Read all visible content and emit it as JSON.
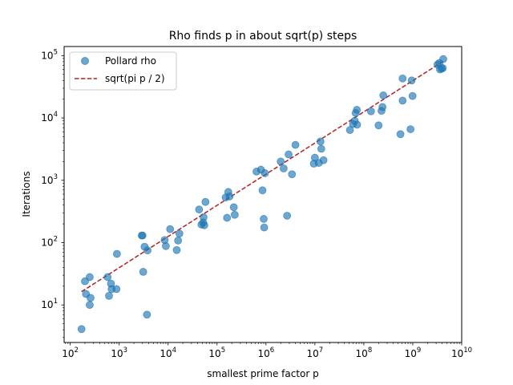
{
  "chart_data": {
    "type": "scatter",
    "title": "Rho finds p in about sqrt(p) steps",
    "xlabel": "smallest prime factor p",
    "ylabel": "Iterations",
    "xscale": "log",
    "yscale": "log",
    "xlim": [
      75,
      10000000000
    ],
    "ylim": [
      2.5,
      140000
    ],
    "xticks": [
      100,
      1000,
      10000,
      100000,
      1000000,
      10000000,
      100000000,
      1000000000,
      10000000000
    ],
    "xtick_labels": [
      {
        "base": "10",
        "exp": "2"
      },
      {
        "base": "10",
        "exp": "3"
      },
      {
        "base": "10",
        "exp": "4"
      },
      {
        "base": "10",
        "exp": "5"
      },
      {
        "base": "10",
        "exp": "6"
      },
      {
        "base": "10",
        "exp": "7"
      },
      {
        "base": "10",
        "exp": "8"
      },
      {
        "base": "10",
        "exp": "9"
      },
      {
        "base": "10",
        "exp": "10"
      }
    ],
    "yticks": [
      10,
      100,
      1000,
      10000,
      100000
    ],
    "ytick_labels": [
      {
        "base": "10",
        "exp": "1"
      },
      {
        "base": "10",
        "exp": "2"
      },
      {
        "base": "10",
        "exp": "3"
      },
      {
        "base": "10",
        "exp": "4"
      },
      {
        "base": "10",
        "exp": "5"
      }
    ],
    "grid": false,
    "legend_position": "top-left",
    "series": [
      {
        "name": "Pollard rho",
        "kind": "scatter",
        "color": "#1f77b4",
        "opacity": 0.65,
        "points": [
          [
            170,
            4.1
          ],
          [
            200,
            24
          ],
          [
            210,
            15
          ],
          [
            250,
            28
          ],
          [
            250,
            10
          ],
          [
            260,
            13
          ],
          [
            580,
            28
          ],
          [
            620,
            14
          ],
          [
            680,
            22
          ],
          [
            700,
            18
          ],
          [
            880,
            18
          ],
          [
            900,
            66
          ],
          [
            2900,
            130
          ],
          [
            3000,
            130
          ],
          [
            3100,
            34
          ],
          [
            3300,
            86
          ],
          [
            3700,
            7
          ],
          [
            3800,
            75
          ],
          [
            8500,
            110
          ],
          [
            9000,
            88
          ],
          [
            11000,
            165
          ],
          [
            15000,
            76
          ],
          [
            16000,
            108
          ],
          [
            17000,
            140
          ],
          [
            43000,
            340
          ],
          [
            48000,
            195
          ],
          [
            52000,
            210
          ],
          [
            53000,
            255
          ],
          [
            55000,
            190
          ],
          [
            58000,
            450
          ],
          [
            150000,
            530
          ],
          [
            160000,
            250
          ],
          [
            170000,
            650
          ],
          [
            180000,
            550
          ],
          [
            220000,
            370
          ],
          [
            230000,
            280
          ],
          [
            640000,
            1380
          ],
          [
            790000,
            1480
          ],
          [
            850000,
            690
          ],
          [
            900000,
            240
          ],
          [
            920000,
            175
          ],
          [
            950000,
            1300
          ],
          [
            2000000,
            2000
          ],
          [
            2300000,
            1550
          ],
          [
            2700000,
            270
          ],
          [
            2900000,
            2600
          ],
          [
            3400000,
            1250
          ],
          [
            4000000,
            3700
          ],
          [
            9500000,
            1850
          ],
          [
            10000000,
            2300
          ],
          [
            12000000,
            1900
          ],
          [
            13000000,
            4200
          ],
          [
            13500000,
            3200
          ],
          [
            15000000,
            2100
          ],
          [
            52000000,
            6400
          ],
          [
            60000000,
            8000
          ],
          [
            65000000,
            9000
          ],
          [
            68000000,
            12000
          ],
          [
            72000000,
            13500
          ],
          [
            73000000,
            7800
          ],
          [
            140000000,
            12800
          ],
          [
            200000000,
            7600
          ],
          [
            230000000,
            13000
          ],
          [
            240000000,
            15000
          ],
          [
            250000000,
            23000
          ],
          [
            560000000,
            5500
          ],
          [
            620000000,
            19000
          ],
          [
            620000000,
            43000
          ],
          [
            900000000,
            6600
          ],
          [
            950000000,
            40000
          ],
          [
            990000000,
            22500
          ],
          [
            3200000000,
            72000
          ],
          [
            3500000000,
            76000
          ],
          [
            3600000000,
            60000
          ],
          [
            3900000000,
            62000
          ],
          [
            4100000000,
            63000
          ],
          [
            4200000000,
            88000
          ]
        ]
      },
      {
        "name": "sqrt(pi p / 2)",
        "kind": "line",
        "style": "dashed",
        "color": "#b22222",
        "formula": "sqrt(pi*p/2)",
        "x_range": [
          170,
          4200000000
        ]
      }
    ]
  }
}
